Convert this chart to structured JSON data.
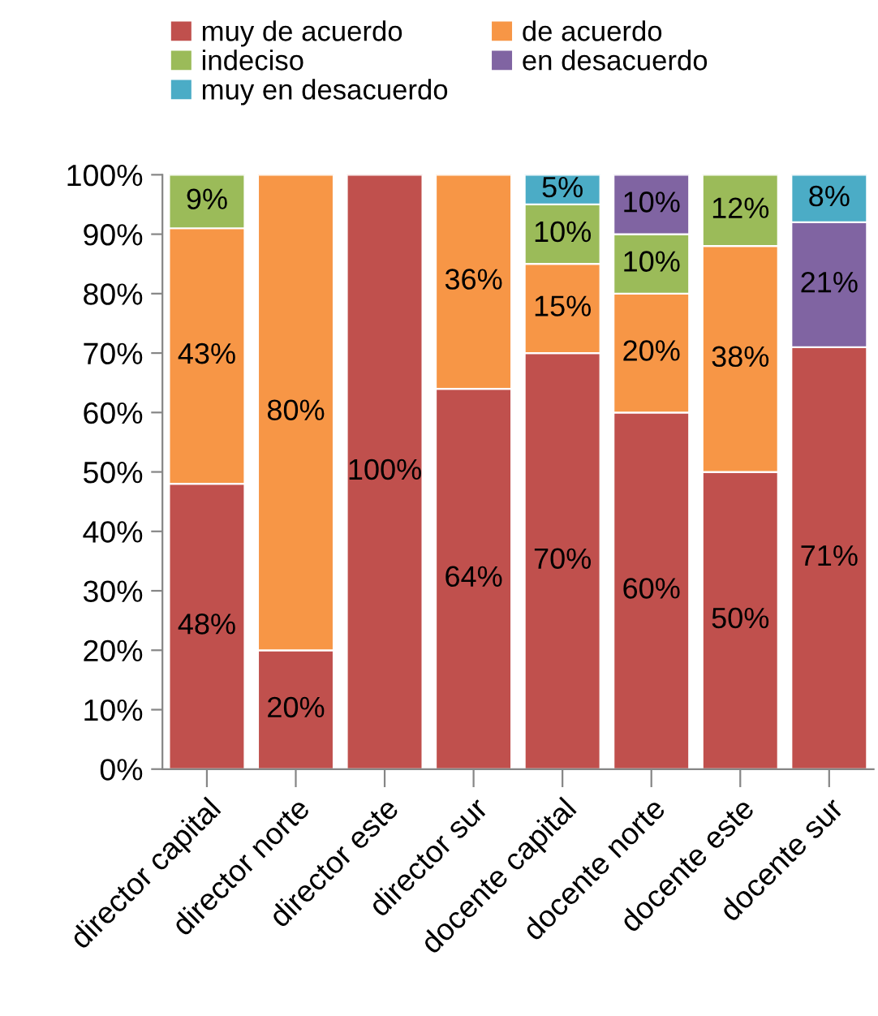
{
  "chart_data": {
    "type": "bar",
    "stacked": true,
    "legend": "top",
    "grid": false,
    "categories": [
      "director capital",
      "director norte",
      "director este",
      "director sur",
      "docente capital",
      "docente norte",
      "docente este",
      "docente sur"
    ],
    "ylim": [
      0,
      100
    ],
    "yticks": [
      {
        "value": 0,
        "label": "0%"
      },
      {
        "value": 10,
        "label": "10%"
      },
      {
        "value": 20,
        "label": "20%"
      },
      {
        "value": 30,
        "label": "30%"
      },
      {
        "value": 40,
        "label": "40%"
      },
      {
        "value": 50,
        "label": "50%"
      },
      {
        "value": 60,
        "label": "60%"
      },
      {
        "value": 70,
        "label": "70%"
      },
      {
        "value": 80,
        "label": "80%"
      },
      {
        "value": 90,
        "label": "90%"
      },
      {
        "value": 100,
        "label": "100%"
      }
    ],
    "series": [
      {
        "name": "muy de acuerdo",
        "color": "#c0504d",
        "values": [
          48,
          20,
          100,
          64,
          70,
          60,
          50,
          71
        ],
        "value_labels": [
          "48%",
          "20%",
          "100%",
          "64%",
          "70%",
          "60%",
          "50%",
          "71%"
        ]
      },
      {
        "name": "de acuerdo",
        "color": "#f79646",
        "values": [
          43,
          80,
          null,
          36,
          15,
          20,
          38,
          null
        ],
        "value_labels": [
          "43%",
          "80%",
          null,
          "36%",
          "15%",
          "20%",
          "38%",
          null
        ]
      },
      {
        "name": "indeciso",
        "color": "#9bbb59",
        "values": [
          9,
          null,
          null,
          null,
          10,
          10,
          12,
          null
        ],
        "value_labels": [
          "9%",
          null,
          null,
          null,
          "10%",
          "10%",
          "12%",
          null
        ]
      },
      {
        "name": "en desacuerdo",
        "color": "#8064a2",
        "values": [
          null,
          null,
          null,
          null,
          null,
          10,
          null,
          21
        ],
        "value_labels": [
          null,
          null,
          null,
          null,
          null,
          "10%",
          null,
          "21%"
        ]
      },
      {
        "name": "muy en desacuerdo",
        "color": "#4bacc6",
        "values": [
          null,
          null,
          null,
          null,
          5,
          null,
          null,
          8
        ],
        "value_labels": [
          null,
          null,
          null,
          null,
          "5%",
          null,
          null,
          "8%"
        ]
      }
    ]
  }
}
